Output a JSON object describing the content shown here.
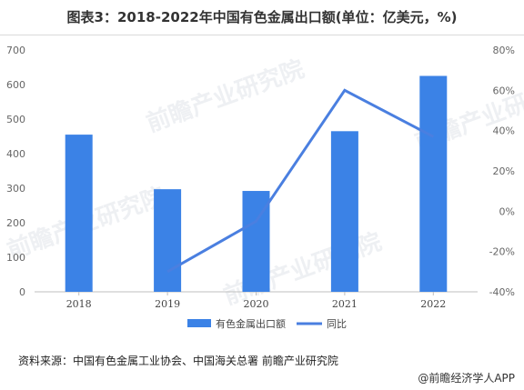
{
  "title": "图表3：2018-2022年中国有色金属出口额(单位：亿美元，%)",
  "source": "资料来源：中国有色金属工业协会、中国海关总署 前瞻产业研究院",
  "credit": "@前瞻经济学人APP",
  "watermark": "前瞻产业研究院",
  "colors": {
    "bar": "#3b82e6",
    "line": "#4a7fe0"
  },
  "chart_data": {
    "type": "bar",
    "categories": [
      "2018",
      "2019",
      "2020",
      "2021",
      "2022"
    ],
    "series": [
      {
        "name": "有色金属出口额",
        "type": "bar",
        "axis": "left",
        "values": [
          455,
          297,
          292,
          465,
          625
        ]
      },
      {
        "name": "同比",
        "type": "line",
        "axis": "right",
        "values": [
          null,
          -30,
          -5,
          60,
          37
        ]
      }
    ],
    "y_left": {
      "min": 0,
      "max": 700,
      "ticks": [
        "0",
        "100",
        "200",
        "300",
        "400",
        "500",
        "600",
        "700"
      ]
    },
    "y_right": {
      "min": -40,
      "max": 80,
      "ticks": [
        "-40%",
        "-20%",
        "0%",
        "20%",
        "40%",
        "60%",
        "80%"
      ]
    },
    "legend": [
      "有色金属出口额",
      "同比"
    ],
    "grid": false
  }
}
